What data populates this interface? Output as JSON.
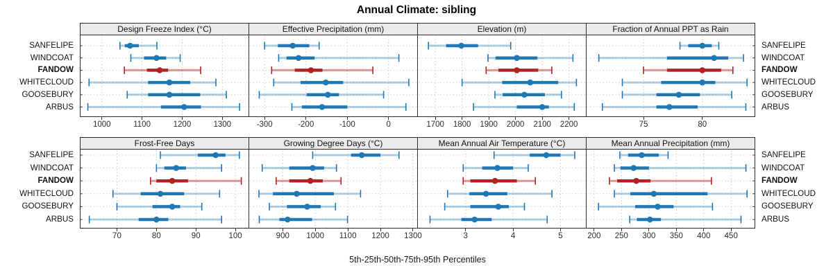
{
  "colors": {
    "normal": "#1F77B4",
    "normal_whisker": "rgba(31,119,180,0.35)",
    "highlight": "#B22222",
    "highlight_whisker": "rgba(178,34,34,0.45)",
    "gridline": "#C9C9C9",
    "row_guide": "#CFCFCF",
    "strip_bg": "#EBEBEB",
    "panel_border": "#2B2B2B",
    "axis_text": "#2D2D2D"
  },
  "chart_data": {
    "type": "dotplot-percentile-intervals",
    "title": "Annual Climate: sibling",
    "xlabel": "5th-25th-50th-75th-95th Percentiles",
    "percentiles": [
      5,
      25,
      50,
      75,
      95
    ],
    "grid": "dotted",
    "layout": "2 rows x 4 columns, site labels on both left and right",
    "sites": [
      {
        "name": "SANFELIPE",
        "highlight": false
      },
      {
        "name": "WINDCOAT",
        "highlight": false
      },
      {
        "name": "FANDOW",
        "highlight": true
      },
      {
        "name": "WHITECLOUD",
        "highlight": false
      },
      {
        "name": "GOOSEBURY",
        "highlight": false
      },
      {
        "name": "ARBUS",
        "highlight": false
      }
    ],
    "panels": [
      {
        "title": "Design Freeze Index (°C)",
        "row": 0,
        "col": 0,
        "xticks": [
          1000,
          1100,
          1200,
          1300
        ],
        "xlim": [
          945,
          1367
        ],
        "values": {
          "SANFELIPE": [
            1045,
            1057,
            1070,
            1092,
            1137
          ],
          "WINDCOAT": [
            1072,
            1105,
            1136,
            1160,
            1195
          ],
          "FANDOW": [
            1056,
            1112,
            1144,
            1165,
            1246
          ],
          "WHITECLOUD": [
            968,
            1115,
            1168,
            1220,
            1284
          ],
          "GOOSEBURY": [
            1063,
            1115,
            1168,
            1245,
            1310
          ],
          "ARBUS": [
            965,
            1147,
            1205,
            1247,
            1343
          ]
        }
      },
      {
        "title": "Effective Precipitation (mm)",
        "row": 0,
        "col": 1,
        "xticks": [
          -300,
          -200,
          -100,
          0
        ],
        "xlim": [
          -339,
          71
        ],
        "values": {
          "SANFELIPE": [
            -300,
            -268,
            -232,
            -192,
            -168
          ],
          "WINDCOAT": [
            -266,
            -247,
            -218,
            -179,
            25
          ],
          "FANDOW": [
            -283,
            -227,
            -188,
            -160,
            -38
          ],
          "WHITECLOUD": [
            -278,
            -213,
            -152,
            -110,
            49
          ],
          "GOOSEBURY": [
            -313,
            -198,
            -147,
            -120,
            -12
          ],
          "ARBUS": [
            -234,
            -210,
            -161,
            -100,
            42
          ]
        }
      },
      {
        "title": "Elevation (m)",
        "row": 0,
        "col": 2,
        "xticks": [
          1700,
          1800,
          1900,
          2000,
          2100,
          2200
        ],
        "xlim": [
          1632,
          2266
        ],
        "values": {
          "SANFELIPE": [
            1674,
            1740,
            1797,
            1860,
            1982
          ],
          "WINDCOAT": [
            1897,
            1925,
            2005,
            2082,
            2215
          ],
          "FANDOW": [
            1890,
            1936,
            2005,
            2085,
            2136
          ],
          "WHITECLOUD": [
            1800,
            1950,
            2055,
            2160,
            2228
          ],
          "GOOSEBURY": [
            1923,
            1952,
            2033,
            2110,
            2172
          ],
          "ARBUS": [
            1843,
            2005,
            2100,
            2125,
            2220
          ]
        }
      },
      {
        "title": "Fraction of Annual PPT as Rain",
        "row": 0,
        "col": 3,
        "xticks": [
          75,
          80
        ],
        "xlim": [
          70.1,
          84.5
        ],
        "values": {
          "SANFELIPE": [
            78.1,
            78.8,
            80.0,
            80.8,
            81.4
          ],
          "WINDCOAT": [
            71.2,
            77.0,
            81.0,
            82.2,
            83.5
          ],
          "FANDOW": [
            75.0,
            77.0,
            80.0,
            81.6,
            82.6
          ],
          "WHITECLOUD": [
            73.2,
            76.5,
            80.0,
            81.1,
            83.8
          ],
          "GOOSEBURY": [
            73.2,
            76.1,
            78.0,
            79.8,
            82.5
          ],
          "ARBUS": [
            71.5,
            76.1,
            77.2,
            79.6,
            83.7
          ]
        }
      },
      {
        "title": "Frost-Free Days",
        "row": 1,
        "col": 0,
        "xticks": [
          70,
          80,
          90,
          100
        ],
        "xlim": [
          60.6,
          103.5
        ],
        "values": {
          "SANFELIPE": [
            81,
            90.5,
            95,
            97.5,
            101
          ],
          "WINDCOAT": [
            80,
            82,
            85,
            87.5,
            96.5
          ],
          "FANDOW": [
            78.5,
            80,
            84,
            88,
            101.5
          ],
          "WHITECLOUD": [
            69,
            76,
            81,
            87,
            96
          ],
          "GOOSEBURY": [
            70,
            79,
            84,
            86,
            91.5
          ],
          "ARBUS": [
            63,
            75.5,
            80,
            83,
            96.5
          ]
        }
      },
      {
        "title": "Growing Degree Days (°C)",
        "row": 1,
        "col": 1,
        "xticks": [
          900,
          1000,
          1100,
          1200,
          1300
        ],
        "xlim": [
          795,
          1315
        ],
        "values": {
          "SANFELIPE": [
            992,
            1110,
            1143,
            1200,
            1257
          ],
          "WINDCOAT": [
            837,
            920,
            992,
            1027,
            1065
          ],
          "FANDOW": [
            880,
            920,
            985,
            1023,
            1079
          ],
          "WHITECLOUD": [
            827,
            870,
            943,
            1057,
            1139
          ],
          "GOOSEBURY": [
            859,
            913,
            975,
            1017,
            1062
          ],
          "ARBUS": [
            828,
            890,
            915,
            990,
            1099
          ]
        }
      },
      {
        "title": "Mean Annual Air Temperature (°C)",
        "row": 1,
        "col": 2,
        "xticks": [
          3,
          4,
          5
        ],
        "xlim": [
          1.98,
          5.55
        ],
        "values": {
          "SANFELIPE": [
            3.6,
            4.35,
            4.7,
            5.0,
            5.3
          ],
          "WINDCOAT": [
            2.95,
            3.35,
            3.67,
            4.0,
            4.32
          ],
          "FANDOW": [
            2.95,
            3.1,
            3.62,
            4.08,
            4.47
          ],
          "WHITECLOUD": [
            2.62,
            3.08,
            3.43,
            3.88,
            4.82
          ],
          "GOOSEBURY": [
            2.56,
            3.1,
            3.69,
            3.91,
            4.24
          ],
          "ARBUS": [
            2.25,
            2.91,
            3.19,
            3.55,
            4.72
          ]
        }
      },
      {
        "title": "Mean Annual Precipitation (mm)",
        "row": 1,
        "col": 3,
        "xticks": [
          200,
          250,
          300,
          350,
          400,
          450
        ],
        "xlim": [
          185,
          494
        ],
        "values": {
          "SANFELIPE": [
            247,
            262,
            287,
            318,
            335
          ],
          "WINDCOAT": [
            237,
            248,
            272,
            300,
            477
          ],
          "FANDOW": [
            228,
            242,
            277,
            303,
            414
          ],
          "WHITECLOUD": [
            237,
            266,
            309,
            407,
            479
          ],
          "GOOSEBURY": [
            208,
            275,
            316,
            345,
            416
          ],
          "ARBUS": [
            265,
            278,
            302,
            322,
            468
          ]
        }
      }
    ]
  }
}
